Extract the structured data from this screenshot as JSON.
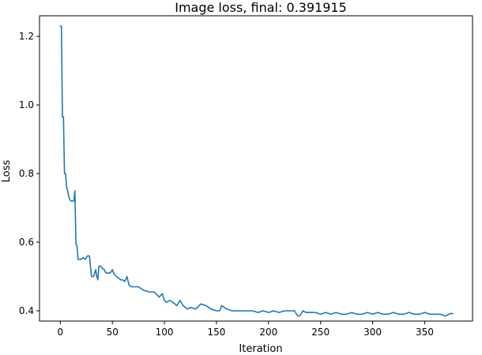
{
  "chart_data": {
    "type": "line",
    "title": "Image loss, final: 0.391915",
    "xlabel": "Iteration",
    "ylabel": "Loss",
    "xlim": [
      -20,
      396
    ],
    "ylim": [
      0.37,
      1.26
    ],
    "xticks": [
      0,
      50,
      100,
      150,
      200,
      250,
      300,
      350
    ],
    "xtick_labels": [
      "0",
      "50",
      "100",
      "150",
      "200",
      "250",
      "300",
      "350"
    ],
    "yticks": [
      0.4,
      0.6,
      0.8,
      1.0,
      1.2
    ],
    "ytick_labels": [
      "0.4",
      "0.6",
      "0.8",
      "1.0",
      "1.2"
    ],
    "grid": false,
    "series_color": "#1f77b4",
    "series": [
      {
        "x": [
          0,
          1,
          2,
          3,
          4,
          5,
          6,
          7,
          8,
          9,
          10,
          11,
          12,
          13,
          14,
          15,
          16,
          17,
          18,
          19,
          20,
          22,
          24,
          26,
          28,
          30,
          31,
          32,
          34,
          35,
          36,
          37,
          38,
          39,
          40,
          42,
          44,
          46,
          48,
          50,
          52,
          54,
          56,
          58,
          60,
          62,
          64,
          66,
          68,
          70,
          75,
          80,
          85,
          90,
          95,
          98,
          100,
          102,
          105,
          108,
          110,
          112,
          115,
          118,
          120,
          122,
          125,
          130,
          135,
          140,
          145,
          150,
          153,
          155,
          160,
          165,
          170,
          175,
          180,
          185,
          190,
          195,
          200,
          205,
          210,
          215,
          220,
          225,
          228,
          230,
          233,
          236,
          240,
          245,
          250,
          255,
          260,
          265,
          270,
          275,
          280,
          285,
          290,
          295,
          300,
          305,
          310,
          315,
          320,
          325,
          330,
          335,
          340,
          345,
          350,
          355,
          360,
          365,
          370,
          375,
          377
        ],
        "y": [
          1.23,
          1.23,
          0.965,
          0.965,
          0.8,
          0.8,
          0.76,
          0.75,
          0.735,
          0.725,
          0.72,
          0.72,
          0.72,
          0.72,
          0.75,
          0.595,
          0.59,
          0.55,
          0.55,
          0.55,
          0.55,
          0.555,
          0.55,
          0.56,
          0.56,
          0.5,
          0.5,
          0.5,
          0.52,
          0.5,
          0.49,
          0.53,
          0.53,
          0.53,
          0.525,
          0.52,
          0.51,
          0.51,
          0.51,
          0.52,
          0.505,
          0.5,
          0.495,
          0.49,
          0.49,
          0.485,
          0.5,
          0.475,
          0.47,
          0.47,
          0.47,
          0.46,
          0.455,
          0.455,
          0.44,
          0.45,
          0.43,
          0.425,
          0.43,
          0.425,
          0.42,
          0.415,
          0.43,
          0.415,
          0.41,
          0.405,
          0.41,
          0.405,
          0.42,
          0.415,
          0.405,
          0.4,
          0.4,
          0.415,
          0.405,
          0.4,
          0.4,
          0.4,
          0.4,
          0.4,
          0.395,
          0.4,
          0.395,
          0.4,
          0.395,
          0.4,
          0.4,
          0.4,
          0.385,
          0.385,
          0.4,
          0.395,
          0.395,
          0.395,
          0.39,
          0.395,
          0.39,
          0.395,
          0.39,
          0.39,
          0.395,
          0.39,
          0.39,
          0.395,
          0.39,
          0.395,
          0.39,
          0.39,
          0.395,
          0.39,
          0.39,
          0.395,
          0.39,
          0.39,
          0.395,
          0.39,
          0.39,
          0.39,
          0.385,
          0.392,
          0.392
        ]
      }
    ]
  }
}
